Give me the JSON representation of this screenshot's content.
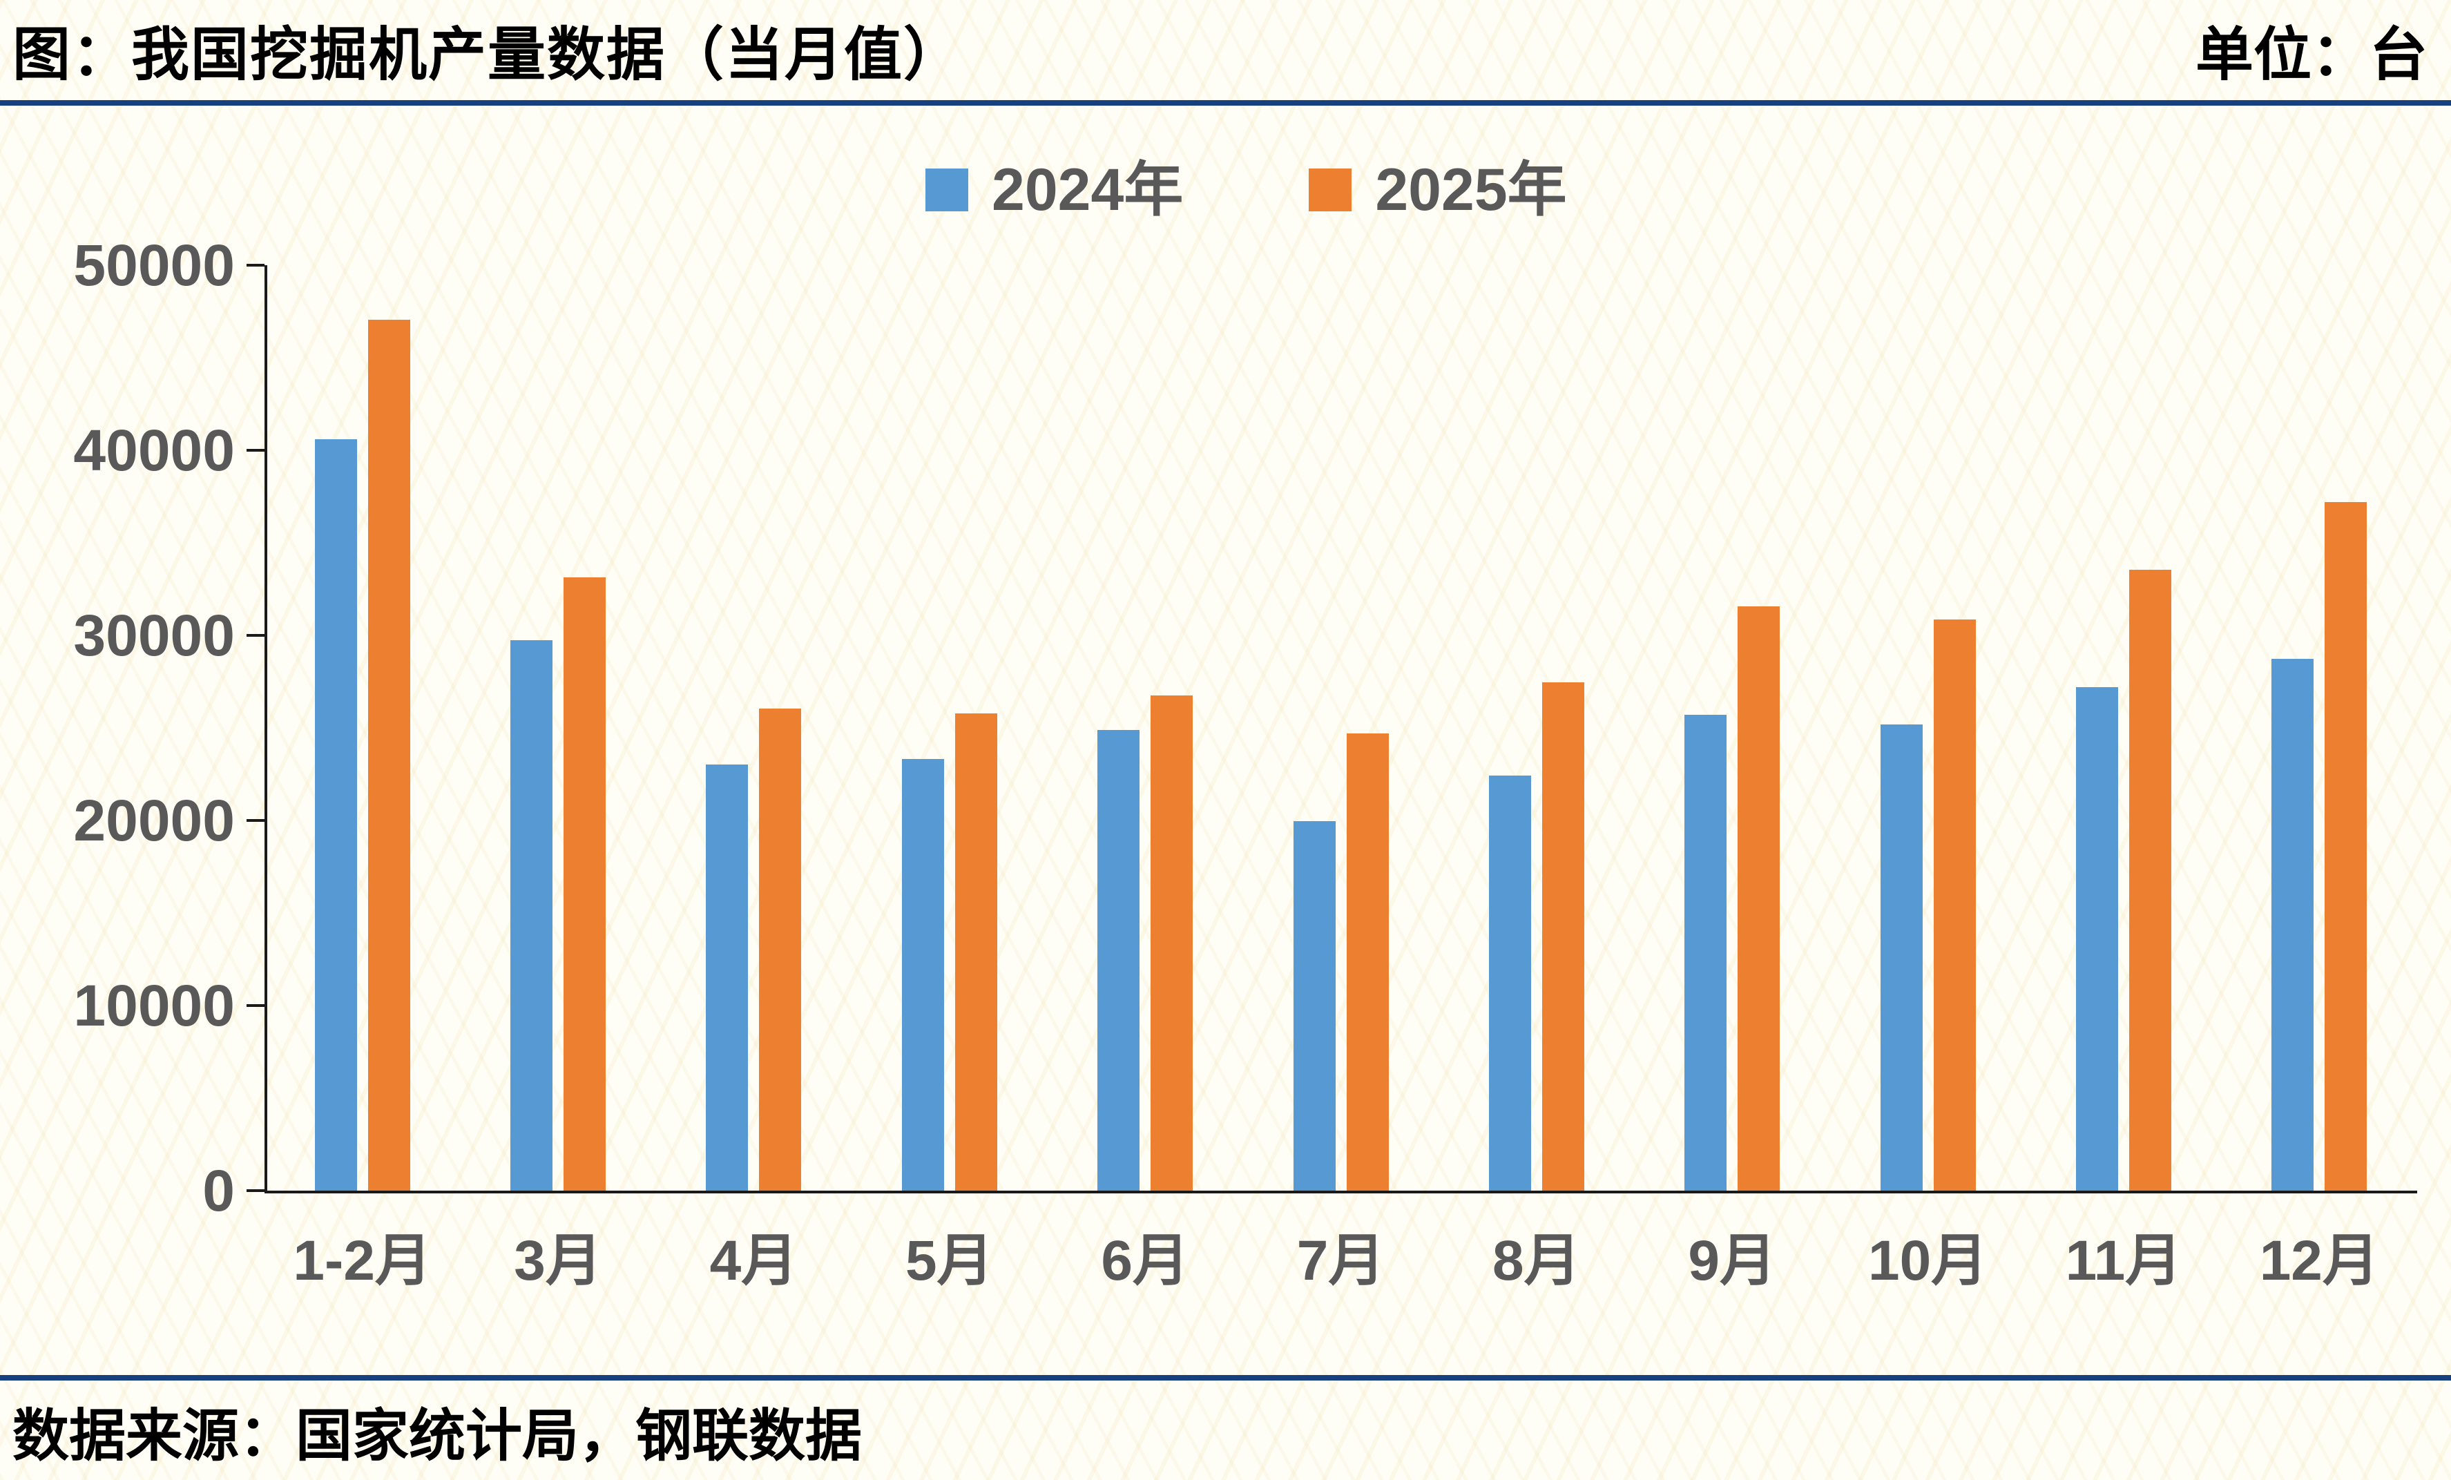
{
  "header": {
    "title": "图：我国挖掘机产量数据（当月值）",
    "unit_label": "单位：台"
  },
  "chart_data": {
    "type": "bar",
    "title": "图：我国挖掘机产量数据（当月值）",
    "unit": "台",
    "categories": [
      "1-2月",
      "3月",
      "4月",
      "5月",
      "6月",
      "7月",
      "8月",
      "9月",
      "10月",
      "11月",
      "12月"
    ],
    "series": [
      {
        "name": "2024年",
        "color": "#579ad3",
        "values": [
          40614,
          29727,
          23004,
          23303,
          24904,
          19963,
          22417,
          25701,
          25203,
          27197,
          28733
        ]
      },
      {
        "name": "2025年",
        "color": "#ed7f30",
        "values": [
          47042,
          33125,
          26034,
          25800,
          26749,
          24708,
          27462,
          31555,
          30875,
          33562,
          37191
        ]
      }
    ],
    "xlabel": "",
    "ylabel": "",
    "ylim": [
      0,
      50000
    ],
    "yticks": [
      0,
      10000,
      20000,
      30000,
      40000,
      50000
    ],
    "grid": false,
    "legend_position": "top-center"
  },
  "footer": {
    "source": "数据来源：国家统计局，钢联数据"
  },
  "colors": {
    "divider": "#17417e",
    "axis": "#1a1a1a",
    "tick_label": "#595959",
    "background": "#fffef6"
  }
}
